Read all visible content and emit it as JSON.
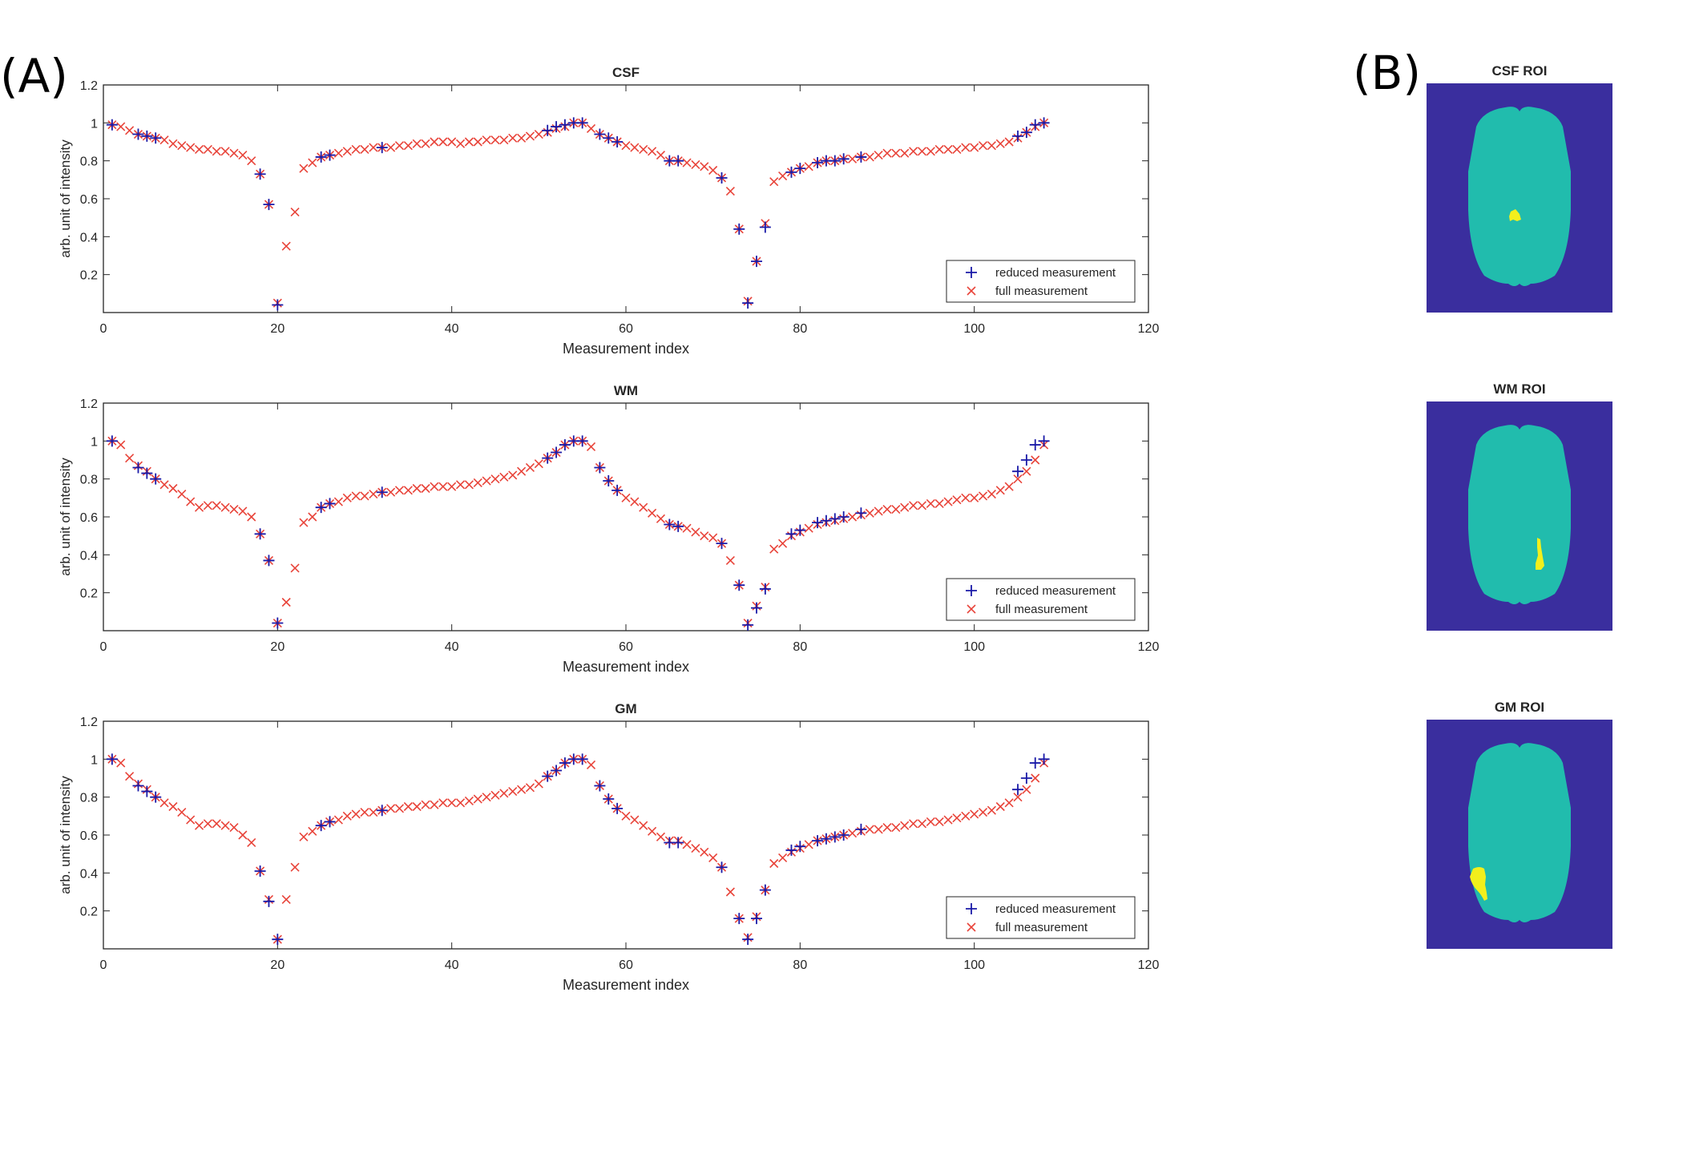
{
  "panel_labels": {
    "a": "(A)",
    "b": "(B)"
  },
  "colors": {
    "reduced": "#1a1aa8",
    "full": "#e8443a",
    "roi_background": "#3a2e9e",
    "brain": "#21bcad",
    "roi": "#f2ef1c",
    "axes": "#262626"
  },
  "roi_titles": [
    "CSF ROI",
    "WM ROI",
    "GM ROI"
  ],
  "chart_data": [
    {
      "type": "scatter",
      "title": "CSF",
      "xlabel": "Measurement index",
      "ylabel": "arb. unit of intensity",
      "xlim": [
        0,
        120
      ],
      "ylim": [
        0,
        1.2
      ],
      "xticks": [
        0,
        20,
        40,
        60,
        80,
        100,
        120
      ],
      "yticks": [
        0.2,
        0.4,
        0.6,
        0.8,
        1,
        1.2
      ],
      "legend": {
        "position": "bottom-right",
        "entries": [
          "reduced measurement",
          "full measurement"
        ]
      },
      "series": [
        {
          "name": "full measurement",
          "marker": "x",
          "x": [
            1,
            2,
            3,
            4,
            5,
            6,
            7,
            8,
            9,
            10,
            11,
            12,
            13,
            14,
            15,
            16,
            17,
            18,
            19,
            20,
            21,
            22,
            23,
            24,
            25,
            26,
            27,
            28,
            29,
            30,
            31,
            32,
            33,
            34,
            35,
            36,
            37,
            38,
            39,
            40,
            41,
            42,
            43,
            44,
            45,
            46,
            47,
            48,
            49,
            50,
            51,
            52,
            53,
            54,
            55,
            56,
            57,
            58,
            59,
            60,
            61,
            62,
            63,
            64,
            65,
            66,
            67,
            68,
            69,
            70,
            71,
            72,
            73,
            74,
            75,
            76,
            77,
            78,
            79,
            80,
            81,
            82,
            83,
            84,
            85,
            86,
            87,
            88,
            89,
            90,
            91,
            92,
            93,
            94,
            95,
            96,
            97,
            98,
            99,
            100,
            101,
            102,
            103,
            104,
            105,
            106,
            107,
            108
          ],
          "y": [
            0.99,
            0.98,
            0.96,
            0.94,
            0.93,
            0.92,
            0.91,
            0.89,
            0.88,
            0.87,
            0.86,
            0.86,
            0.85,
            0.85,
            0.84,
            0.83,
            0.8,
            0.73,
            0.57,
            0.05,
            0.35,
            0.53,
            0.76,
            0.79,
            0.82,
            0.83,
            0.84,
            0.85,
            0.86,
            0.86,
            0.87,
            0.87,
            0.87,
            0.88,
            0.88,
            0.89,
            0.89,
            0.9,
            0.9,
            0.9,
            0.89,
            0.9,
            0.9,
            0.91,
            0.91,
            0.91,
            0.92,
            0.92,
            0.93,
            0.94,
            0.95,
            0.97,
            0.98,
            1.0,
            1.0,
            0.97,
            0.94,
            0.92,
            0.9,
            0.88,
            0.87,
            0.86,
            0.85,
            0.83,
            0.8,
            0.8,
            0.79,
            0.78,
            0.77,
            0.75,
            0.71,
            0.64,
            0.44,
            0.06,
            0.27,
            0.47,
            0.69,
            0.72,
            0.74,
            0.76,
            0.77,
            0.79,
            0.8,
            0.8,
            0.81,
            0.81,
            0.82,
            0.82,
            0.83,
            0.84,
            0.84,
            0.84,
            0.85,
            0.85,
            0.85,
            0.86,
            0.86,
            0.86,
            0.87,
            0.87,
            0.88,
            0.88,
            0.89,
            0.9,
            0.92,
            0.95,
            0.98,
            1.0
          ]
        },
        {
          "name": "reduced measurement",
          "marker": "+",
          "x": [
            1,
            4,
            5,
            6,
            18,
            19,
            20,
            25,
            26,
            32,
            51,
            52,
            53,
            54,
            55,
            57,
            58,
            59,
            65,
            66,
            71,
            73,
            74,
            75,
            76,
            79,
            80,
            82,
            83,
            84,
            85,
            87,
            105,
            106,
            107,
            108
          ],
          "y": [
            0.99,
            0.94,
            0.93,
            0.92,
            0.73,
            0.57,
            0.04,
            0.82,
            0.83,
            0.87,
            0.96,
            0.98,
            0.99,
            1.0,
            1.0,
            0.94,
            0.92,
            0.9,
            0.8,
            0.8,
            0.71,
            0.44,
            0.05,
            0.27,
            0.45,
            0.74,
            0.76,
            0.79,
            0.8,
            0.8,
            0.81,
            0.82,
            0.93,
            0.95,
            0.99,
            1.0
          ]
        }
      ]
    },
    {
      "type": "scatter",
      "title": "WM",
      "xlabel": "Measurement index",
      "ylabel": "arb. unit of intensity",
      "xlim": [
        0,
        120
      ],
      "ylim": [
        0,
        1.2
      ],
      "xticks": [
        0,
        20,
        40,
        60,
        80,
        100,
        120
      ],
      "yticks": [
        0.2,
        0.4,
        0.6,
        0.8,
        1,
        1.2
      ],
      "legend": {
        "position": "bottom-right",
        "entries": [
          "reduced measurement",
          "full measurement"
        ]
      },
      "series": [
        {
          "name": "full measurement",
          "marker": "x",
          "x": [
            1,
            2,
            3,
            4,
            5,
            6,
            7,
            8,
            9,
            10,
            11,
            12,
            13,
            14,
            15,
            16,
            17,
            18,
            19,
            20,
            21,
            22,
            23,
            24,
            25,
            26,
            27,
            28,
            29,
            30,
            31,
            32,
            33,
            34,
            35,
            36,
            37,
            38,
            39,
            40,
            41,
            42,
            43,
            44,
            45,
            46,
            47,
            48,
            49,
            50,
            51,
            52,
            53,
            54,
            55,
            56,
            57,
            58,
            59,
            60,
            61,
            62,
            63,
            64,
            65,
            66,
            67,
            68,
            69,
            70,
            71,
            72,
            73,
            74,
            75,
            76,
            77,
            78,
            79,
            80,
            81,
            82,
            83,
            84,
            85,
            86,
            87,
            88,
            89,
            90,
            91,
            92,
            93,
            94,
            95,
            96,
            97,
            98,
            99,
            100,
            101,
            102,
            103,
            104,
            105,
            106,
            107,
            108
          ],
          "y": [
            1.0,
            0.98,
            0.91,
            0.87,
            0.84,
            0.8,
            0.77,
            0.75,
            0.72,
            0.68,
            0.65,
            0.66,
            0.66,
            0.65,
            0.64,
            0.63,
            0.6,
            0.51,
            0.37,
            0.04,
            0.15,
            0.33,
            0.57,
            0.6,
            0.65,
            0.67,
            0.68,
            0.7,
            0.71,
            0.71,
            0.72,
            0.73,
            0.73,
            0.74,
            0.74,
            0.75,
            0.75,
            0.76,
            0.76,
            0.76,
            0.77,
            0.77,
            0.78,
            0.79,
            0.8,
            0.81,
            0.82,
            0.84,
            0.86,
            0.88,
            0.91,
            0.94,
            0.98,
            1.0,
            1.0,
            0.97,
            0.86,
            0.79,
            0.74,
            0.7,
            0.68,
            0.65,
            0.62,
            0.59,
            0.56,
            0.55,
            0.54,
            0.52,
            0.5,
            0.49,
            0.46,
            0.37,
            0.24,
            0.04,
            0.13,
            0.23,
            0.43,
            0.46,
            0.5,
            0.52,
            0.54,
            0.56,
            0.57,
            0.58,
            0.59,
            0.6,
            0.61,
            0.62,
            0.63,
            0.64,
            0.64,
            0.65,
            0.66,
            0.66,
            0.67,
            0.67,
            0.68,
            0.69,
            0.7,
            0.7,
            0.71,
            0.72,
            0.74,
            0.76,
            0.8,
            0.84,
            0.9,
            0.98
          ]
        },
        {
          "name": "reduced measurement",
          "marker": "+",
          "x": [
            1,
            4,
            5,
            6,
            18,
            19,
            20,
            25,
            26,
            32,
            51,
            52,
            53,
            54,
            55,
            57,
            58,
            59,
            65,
            66,
            71,
            73,
            74,
            75,
            76,
            79,
            80,
            82,
            83,
            84,
            85,
            87,
            105,
            106,
            107,
            108
          ],
          "y": [
            1.0,
            0.86,
            0.83,
            0.8,
            0.51,
            0.37,
            0.04,
            0.65,
            0.67,
            0.73,
            0.91,
            0.94,
            0.98,
            1.0,
            1.0,
            0.86,
            0.79,
            0.74,
            0.56,
            0.55,
            0.46,
            0.24,
            0.03,
            0.12,
            0.22,
            0.51,
            0.53,
            0.57,
            0.58,
            0.59,
            0.6,
            0.62,
            0.84,
            0.9,
            0.98,
            1.0
          ]
        }
      ]
    },
    {
      "type": "scatter",
      "title": "GM",
      "xlabel": "Measurement index",
      "ylabel": "arb. unit of intensity",
      "xlim": [
        0,
        120
      ],
      "ylim": [
        0,
        1.2
      ],
      "xticks": [
        0,
        20,
        40,
        60,
        80,
        100,
        120
      ],
      "yticks": [
        0.2,
        0.4,
        0.6,
        0.8,
        1,
        1.2
      ],
      "legend": {
        "position": "bottom-right",
        "entries": [
          "reduced measurement",
          "full measurement"
        ]
      },
      "series": [
        {
          "name": "full measurement",
          "marker": "x",
          "x": [
            1,
            2,
            3,
            4,
            5,
            6,
            7,
            8,
            9,
            10,
            11,
            12,
            13,
            14,
            15,
            16,
            17,
            18,
            19,
            20,
            21,
            22,
            23,
            24,
            25,
            26,
            27,
            28,
            29,
            30,
            31,
            32,
            33,
            34,
            35,
            36,
            37,
            38,
            39,
            40,
            41,
            42,
            43,
            44,
            45,
            46,
            47,
            48,
            49,
            50,
            51,
            52,
            53,
            54,
            55,
            56,
            57,
            58,
            59,
            60,
            61,
            62,
            63,
            64,
            65,
            66,
            67,
            68,
            69,
            70,
            71,
            72,
            73,
            74,
            75,
            76,
            77,
            78,
            79,
            80,
            81,
            82,
            83,
            84,
            85,
            86,
            87,
            88,
            89,
            90,
            91,
            92,
            93,
            94,
            95,
            96,
            97,
            98,
            99,
            100,
            101,
            102,
            103,
            104,
            105,
            106,
            107,
            108
          ],
          "y": [
            1.0,
            0.98,
            0.91,
            0.87,
            0.84,
            0.8,
            0.77,
            0.75,
            0.72,
            0.68,
            0.65,
            0.66,
            0.66,
            0.65,
            0.64,
            0.6,
            0.56,
            0.41,
            0.26,
            0.05,
            0.26,
            0.43,
            0.59,
            0.62,
            0.65,
            0.67,
            0.68,
            0.7,
            0.71,
            0.72,
            0.72,
            0.73,
            0.74,
            0.74,
            0.75,
            0.75,
            0.76,
            0.76,
            0.77,
            0.77,
            0.77,
            0.78,
            0.79,
            0.8,
            0.81,
            0.82,
            0.83,
            0.84,
            0.85,
            0.87,
            0.91,
            0.94,
            0.98,
            1.0,
            1.0,
            0.97,
            0.86,
            0.79,
            0.74,
            0.7,
            0.68,
            0.65,
            0.62,
            0.59,
            0.57,
            0.57,
            0.55,
            0.53,
            0.51,
            0.48,
            0.43,
            0.3,
            0.16,
            0.06,
            0.17,
            0.31,
            0.45,
            0.48,
            0.51,
            0.53,
            0.55,
            0.57,
            0.58,
            0.59,
            0.6,
            0.61,
            0.62,
            0.63,
            0.63,
            0.64,
            0.64,
            0.65,
            0.66,
            0.66,
            0.67,
            0.67,
            0.68,
            0.69,
            0.7,
            0.71,
            0.72,
            0.73,
            0.75,
            0.77,
            0.8,
            0.84,
            0.9,
            0.98
          ]
        },
        {
          "name": "reduced measurement",
          "marker": "+",
          "x": [
            1,
            4,
            5,
            6,
            18,
            19,
            20,
            25,
            26,
            32,
            51,
            52,
            53,
            54,
            55,
            57,
            58,
            59,
            65,
            66,
            71,
            73,
            74,
            75,
            76,
            79,
            80,
            82,
            83,
            84,
            85,
            87,
            105,
            106,
            107,
            108
          ],
          "y": [
            1.0,
            0.86,
            0.83,
            0.8,
            0.41,
            0.25,
            0.05,
            0.65,
            0.67,
            0.73,
            0.91,
            0.94,
            0.98,
            1.0,
            1.0,
            0.86,
            0.79,
            0.74,
            0.56,
            0.56,
            0.43,
            0.16,
            0.05,
            0.16,
            0.31,
            0.52,
            0.54,
            0.57,
            0.58,
            0.59,
            0.6,
            0.63,
            0.84,
            0.9,
            0.98,
            1.0
          ]
        }
      ]
    }
  ]
}
